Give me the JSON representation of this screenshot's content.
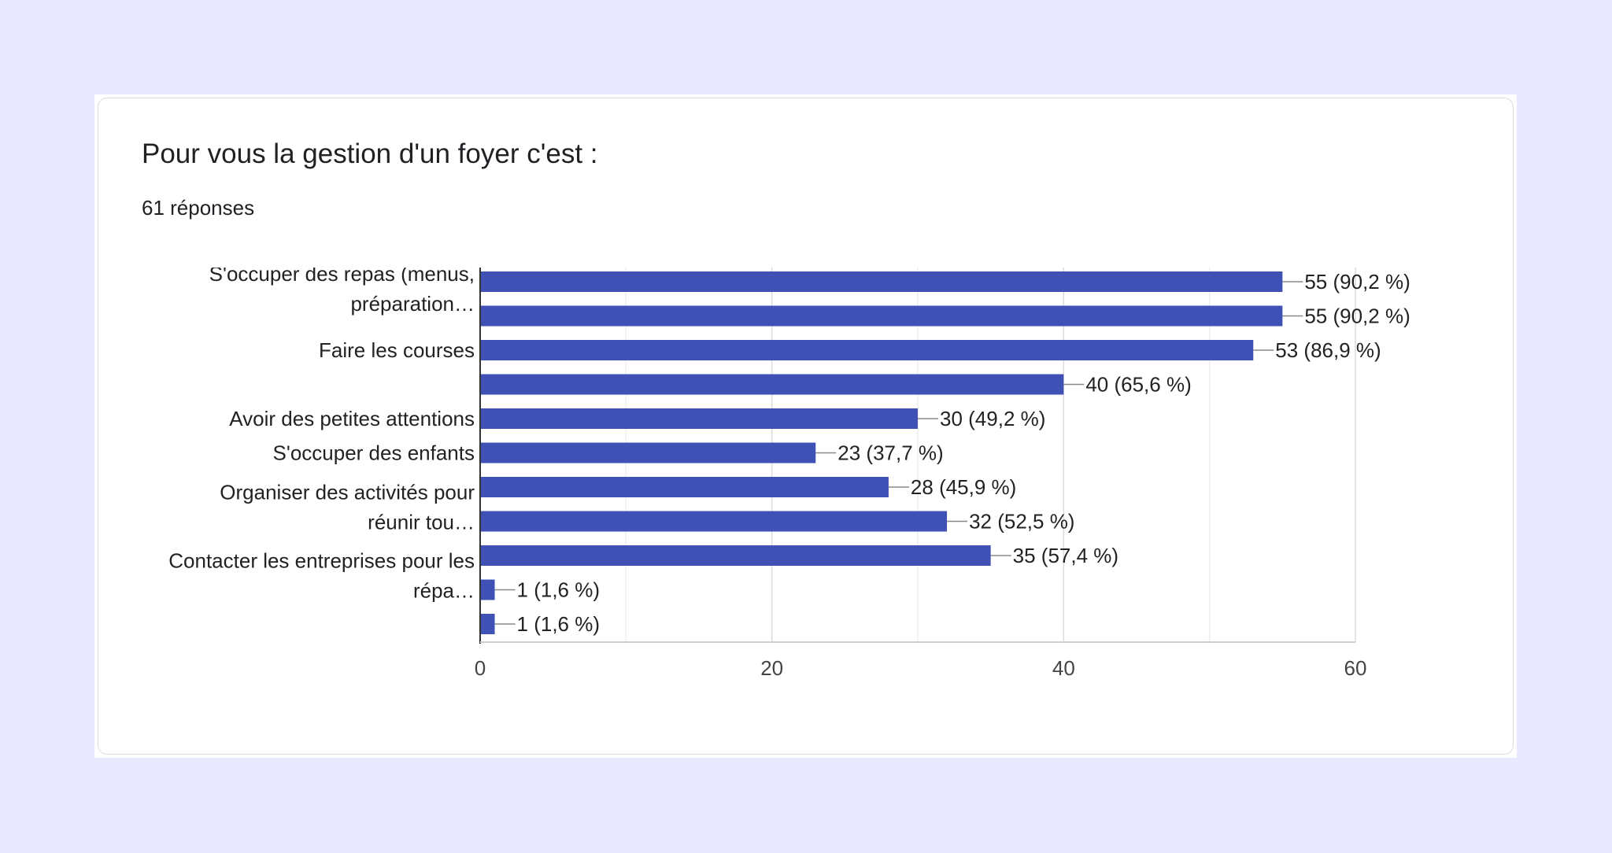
{
  "header": {
    "title": "Pour vous la gestion d'un foyer c'est :",
    "responses": "61 réponses"
  },
  "colors": {
    "bar": "#3f51b5",
    "grid": "#e6e6e6",
    "axis": "#333333",
    "leader": "#888888"
  },
  "chart_data": {
    "type": "bar",
    "orientation": "horizontal",
    "title": "Pour vous la gestion d'un foyer c'est :",
    "xlabel": "",
    "ylabel": "",
    "xlim": [
      0,
      60
    ],
    "xticks": [
      0,
      20,
      40,
      60
    ],
    "grid": true,
    "category_labels": [
      [
        "S'occuper des repas (menus,",
        "préparation…"
      ],
      [],
      [
        "Faire les courses"
      ],
      [],
      [
        "Avoir des petites attentions"
      ],
      [
        "S'occuper des enfants"
      ],
      [],
      [
        "Organiser des activités pour",
        "réunir tou…"
      ],
      [],
      [
        "Contacter les entreprises pour les",
        "répa…"
      ],
      []
    ],
    "values": [
      55,
      55,
      53,
      40,
      30,
      23,
      28,
      32,
      35,
      1,
      1
    ],
    "value_labels": [
      "55 (90,2 %)",
      "55 (90,2 %)",
      "53 (86,9 %)",
      "40 (65,6 %)",
      "30 (49,2 %)",
      "23 (37,7 %)",
      "28 (45,9 %)",
      "32 (52,5 %)",
      "35 (57,4 %)",
      "1 (1,6 %)",
      "1 (1,6 %)"
    ]
  }
}
